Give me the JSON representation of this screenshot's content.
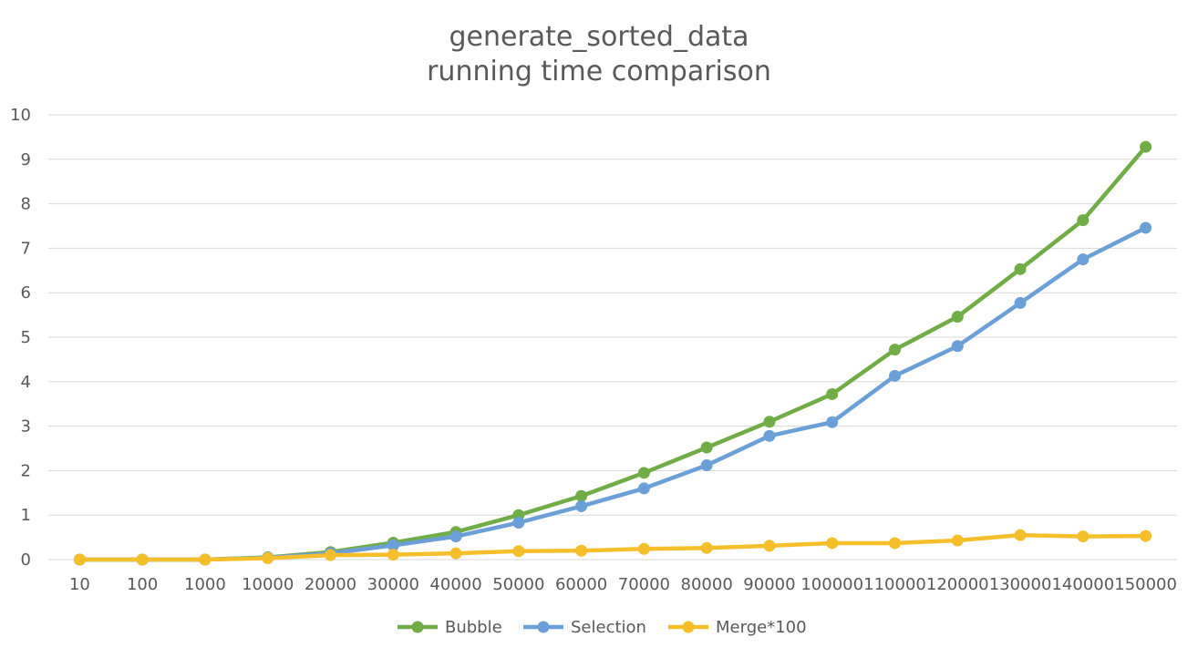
{
  "chart_data": {
    "type": "line",
    "title": "generate_sorted_data",
    "subtitle": "running time comparison",
    "xlabel": "",
    "ylabel": "",
    "categories": [
      "10",
      "100",
      "1000",
      "10000",
      "20000",
      "30000",
      "40000",
      "50000",
      "60000",
      "70000",
      "80000",
      "90000",
      "100000",
      "110000",
      "120000",
      "130000",
      "140000",
      "150000"
    ],
    "ylim": [
      0,
      10
    ],
    "yticks": [
      "0",
      "1",
      "2",
      "3",
      "4",
      "5",
      "6",
      "7",
      "8",
      "9",
      "10"
    ],
    "grid": true,
    "legend_position": "bottom",
    "series": [
      {
        "name": "Bubble",
        "color": "#70ad47",
        "values": [
          0,
          0,
          0,
          0.05,
          0.17,
          0.38,
          0.62,
          1.0,
          1.43,
          1.95,
          2.52,
          3.1,
          3.72,
          4.72,
          5.46,
          6.53,
          7.63,
          9.28
        ]
      },
      {
        "name": "Selection",
        "color": "#6a9fd8",
        "values": [
          0,
          0,
          0,
          0.04,
          0.14,
          0.32,
          0.52,
          0.83,
          1.2,
          1.6,
          2.12,
          2.78,
          3.09,
          4.13,
          4.8,
          5.77,
          6.75,
          7.46
        ]
      },
      {
        "name": "Merge*100",
        "color": "#f5bf2c",
        "values": [
          0,
          0,
          0,
          0.03,
          0.1,
          0.11,
          0.14,
          0.19,
          0.2,
          0.24,
          0.26,
          0.31,
          0.37,
          0.37,
          0.43,
          0.55,
          0.52,
          0.53
        ]
      }
    ]
  }
}
